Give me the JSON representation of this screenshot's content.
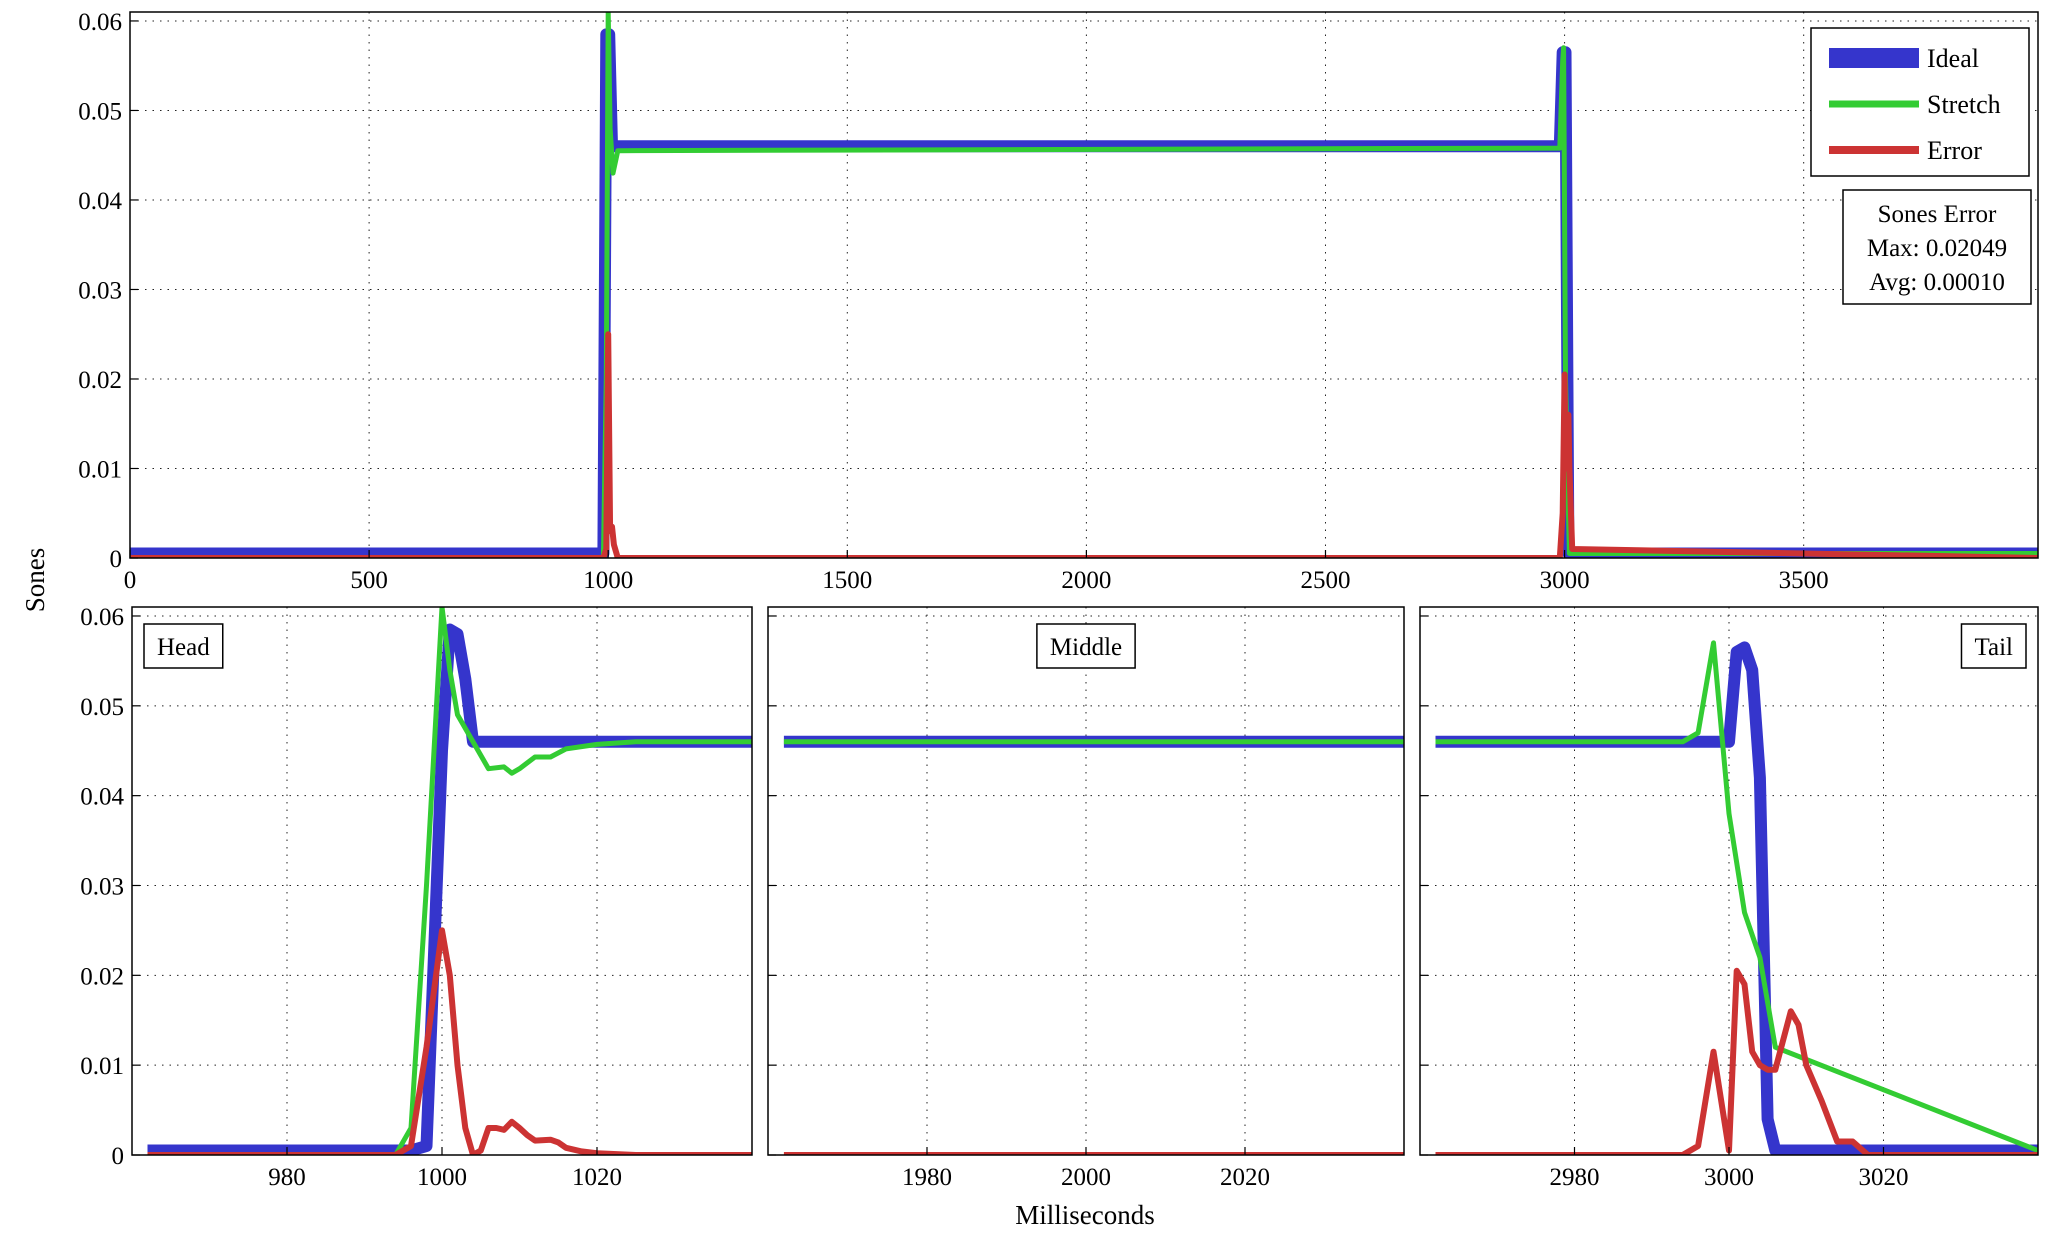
{
  "colors": {
    "ideal": "#3535cc",
    "stretch": "#33cc33",
    "error": "#cc3333"
  },
  "shared": {
    "ylabel": "Sones",
    "xlabel": "Milliseconds"
  },
  "legend": {
    "items": [
      "Ideal",
      "Stretch",
      "Error"
    ],
    "placement": "top-right"
  },
  "stats": {
    "title": "Sones Error",
    "max": "Max: 0.02049",
    "avg": "Avg: 0.00010"
  },
  "chart_data": [
    {
      "id": "main",
      "type": "line",
      "xlim": [
        0,
        3990
      ],
      "ylim": [
        0,
        0.061
      ],
      "xticks": [
        0,
        500,
        1000,
        1500,
        2000,
        2500,
        3000,
        3500
      ],
      "yticks": [
        0,
        0.01,
        0.02,
        0.03,
        0.04,
        0.05,
        0.06
      ],
      "ytick_labels": [
        "0",
        "0.01",
        "0.02",
        "0.03",
        "0.04",
        "0.05",
        "0.06"
      ],
      "grid": true,
      "series": [
        {
          "name": "Ideal",
          "x": [
            0,
            990,
            996,
            1002,
            1008,
            2990,
            2996,
            3002,
            3008,
            3990
          ],
          "y": [
            0.0005,
            0.0005,
            0.0585,
            0.0585,
            0.046,
            0.046,
            0.0565,
            0.0565,
            0.0005,
            0.0005
          ]
        },
        {
          "name": "Stretch",
          "x": [
            0,
            990,
            996,
            1000,
            1004,
            1010,
            1020,
            2990,
            2996,
            2998,
            3002,
            3006,
            3010,
            3990
          ],
          "y": [
            0,
            0,
            0.02,
            0.061,
            0.048,
            0.043,
            0.0455,
            0.0458,
            0.0555,
            0.057,
            0.02,
            0.01,
            0.0005,
            0.0005
          ]
        },
        {
          "name": "Error",
          "x": [
            0,
            990,
            996,
            1000,
            1004,
            1008,
            1012,
            1020,
            2990,
            2996,
            3000,
            3002,
            3008,
            3010,
            3016,
            3990
          ],
          "y": [
            0,
            0,
            0.001,
            0.025,
            0.003,
            0.0035,
            0.0015,
            0,
            0,
            0.005,
            0.0205,
            0.01,
            0.016,
            0.01,
            0.001,
            0
          ]
        }
      ]
    },
    {
      "id": "head",
      "type": "line",
      "label": "Head",
      "xlim": [
        960,
        1040
      ],
      "ylim": [
        0,
        0.061
      ],
      "xticks": [
        980,
        1000,
        1020
      ],
      "yticks": [
        0,
        0.01,
        0.02,
        0.03,
        0.04,
        0.05,
        0.06
      ],
      "ytick_labels": [
        "0",
        "0.01",
        "0.02",
        "0.03",
        "0.04",
        "0.05",
        "0.06"
      ],
      "grid": true,
      "series": [
        {
          "name": "Ideal",
          "x": [
            962,
            996,
            998,
            1000,
            1001,
            1002,
            1003,
            1004,
            1040
          ],
          "y": [
            0.0005,
            0.0005,
            0.001,
            0.045,
            0.0585,
            0.058,
            0.053,
            0.046,
            0.046
          ]
        },
        {
          "name": "Stretch",
          "x": [
            962,
            994,
            996,
            998,
            1000,
            1001,
            1002,
            1004,
            1006,
            1008,
            1009,
            1010,
            1012,
            1014,
            1016,
            1020,
            1025,
            1040
          ],
          "y": [
            0,
            0,
            0.003,
            0.03,
            0.061,
            0.054,
            0.049,
            0.046,
            0.043,
            0.0432,
            0.0425,
            0.043,
            0.0443,
            0.0443,
            0.0452,
            0.0457,
            0.046,
            0.046
          ]
        },
        {
          "name": "Error",
          "x": [
            962,
            994,
            996,
            998,
            1000,
            1001,
            1002,
            1003,
            1004,
            1005,
            1006,
            1007,
            1008,
            1009,
            1010,
            1011,
            1012,
            1014,
            1015,
            1016,
            1018,
            1020,
            1025,
            1040
          ],
          "y": [
            0,
            0,
            0.001,
            0.012,
            0.025,
            0.02,
            0.01,
            0.003,
            0,
            0.0005,
            0.003,
            0.003,
            0.0028,
            0.0037,
            0.003,
            0.0022,
            0.0016,
            0.0017,
            0.0014,
            0.0008,
            0.0004,
            0.0002,
            0,
            0
          ]
        }
      ]
    },
    {
      "id": "middle",
      "type": "line",
      "label": "Middle",
      "xlim": [
        1960,
        2040
      ],
      "ylim": [
        0,
        0.061
      ],
      "xticks": [
        1980,
        2000,
        2020
      ],
      "yticks": [
        0,
        0.01,
        0.02,
        0.03,
        0.04,
        0.05,
        0.06
      ],
      "grid": true,
      "series": [
        {
          "name": "Ideal",
          "x": [
            1962,
            2040
          ],
          "y": [
            0.046,
            0.046
          ]
        },
        {
          "name": "Stretch",
          "x": [
            1962,
            2040
          ],
          "y": [
            0.046,
            0.046
          ]
        },
        {
          "name": "Error",
          "x": [
            1962,
            2040
          ],
          "y": [
            0,
            0
          ]
        }
      ]
    },
    {
      "id": "tail",
      "type": "line",
      "label": "Tail",
      "xlim": [
        2960,
        3040
      ],
      "ylim": [
        0,
        0.061
      ],
      "xticks": [
        2980,
        3000,
        3020
      ],
      "yticks": [
        0,
        0.01,
        0.02,
        0.03,
        0.04,
        0.05,
        0.06
      ],
      "grid": true,
      "series": [
        {
          "name": "Ideal",
          "x": [
            2962,
            3000,
            3001,
            3002,
            3003,
            3004,
            3005,
            3006,
            3040
          ],
          "y": [
            0.046,
            0.046,
            0.056,
            0.0565,
            0.054,
            0.042,
            0.004,
            0.0005,
            0.0005
          ]
        },
        {
          "name": "Stretch",
          "x": [
            2962,
            2994,
            2996,
            2998,
            3000,
            3002,
            3004,
            3006,
            3040
          ],
          "y": [
            0.046,
            0.046,
            0.047,
            0.057,
            0.038,
            0.027,
            0.022,
            0.012,
            0.0005
          ]
        },
        {
          "name": "Error",
          "x": [
            2962,
            2994,
            2996,
            2998,
            3000,
            3001,
            3002,
            3003,
            3004,
            3005,
            3006,
            3008,
            3009,
            3010,
            3012,
            3014,
            3016,
            3018,
            3040
          ],
          "y": [
            0,
            0,
            0.001,
            0.0115,
            0.0005,
            0.0205,
            0.019,
            0.0115,
            0.01,
            0.0095,
            0.0095,
            0.016,
            0.0145,
            0.01,
            0.006,
            0.0015,
            0.0015,
            0,
            0
          ]
        }
      ]
    }
  ]
}
